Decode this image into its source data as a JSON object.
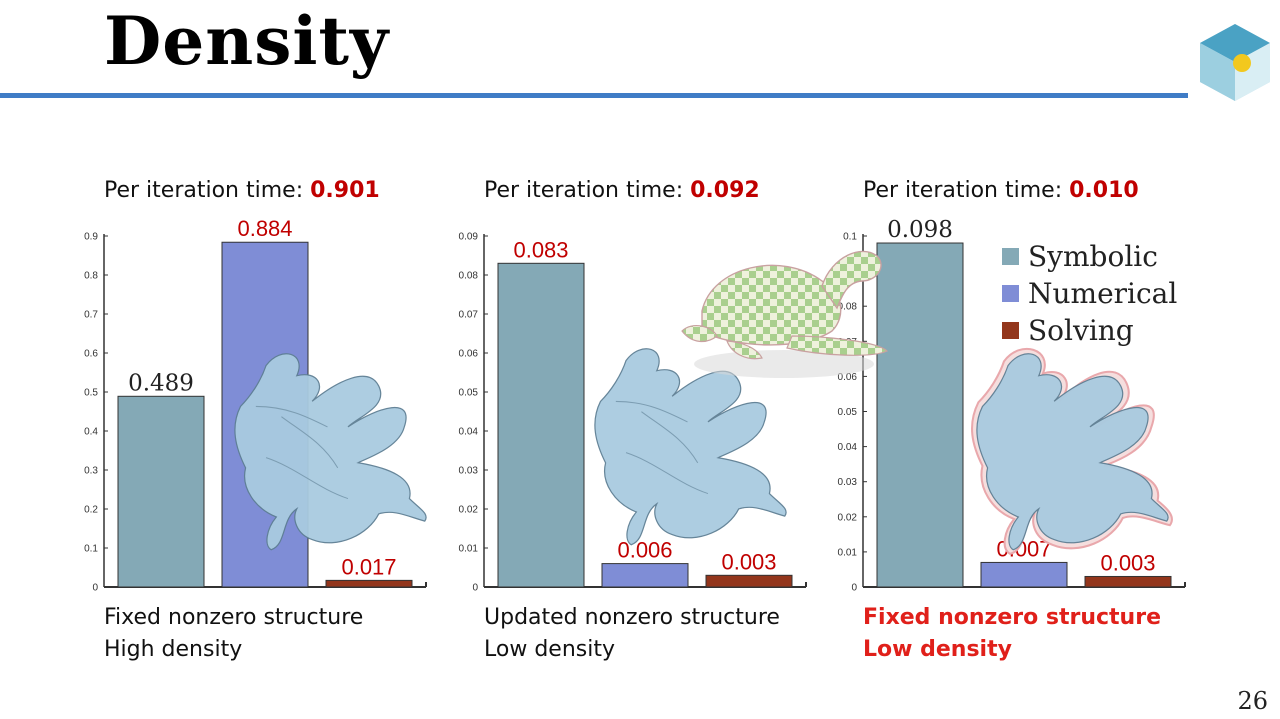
{
  "slide": {
    "title": "Density",
    "page_number": "26"
  },
  "panels": [
    {
      "heading_prefix": "Per iteration time: ",
      "heading_value": "0.901",
      "caption_line1": "Fixed nonzero structure",
      "caption_line2": "High density",
      "caption_highlight": false
    },
    {
      "heading_prefix": "Per iteration time: ",
      "heading_value": "0.092",
      "caption_line1": "Updated nonzero structure",
      "caption_line2": "Low density",
      "caption_highlight": false
    },
    {
      "heading_prefix": "Per iteration time: ",
      "heading_value": "0.010",
      "caption_line1": "Fixed nonzero structure",
      "caption_line2": "Low density",
      "caption_highlight": true
    }
  ],
  "legend": [
    {
      "label": "Symbolic",
      "color": "#84a9b6"
    },
    {
      "label": "Numerical",
      "color": "#7f8dd6"
    },
    {
      "label": "Solving",
      "color": "#93361c"
    }
  ],
  "chart_data": [
    {
      "type": "bar",
      "categories": [
        "Symbolic",
        "Numerical",
        "Solving"
      ],
      "values": [
        0.489,
        0.884,
        0.017
      ],
      "value_labels": [
        "0.489",
        "0.884",
        "0.017"
      ],
      "ylim": [
        0,
        0.9
      ],
      "yticks": [
        "0",
        "0.1",
        "0.2",
        "0.3",
        "0.4",
        "0.5",
        "0.6",
        "0.7",
        "0.8",
        "0.9"
      ]
    },
    {
      "type": "bar",
      "categories": [
        "Symbolic",
        "Numerical",
        "Solving"
      ],
      "values": [
        0.083,
        0.006,
        0.003
      ],
      "value_labels": [
        "0.083",
        "0.006",
        "0.003"
      ],
      "ylim": [
        0,
        0.09
      ],
      "yticks": [
        "0",
        "0.01",
        "0.02",
        "0.03",
        "0.04",
        "0.05",
        "0.06",
        "0.07",
        "0.08",
        "0.09"
      ]
    },
    {
      "type": "bar",
      "categories": [
        "Symbolic",
        "Numerical",
        "Solving"
      ],
      "values": [
        0.098,
        0.007,
        0.003
      ],
      "value_labels": [
        "0.098",
        "0.007",
        "0.003"
      ],
      "ylim": [
        0,
        0.1
      ],
      "yticks": [
        "0",
        "0.01",
        "0.02",
        "0.03",
        "0.04",
        "0.05",
        "0.06",
        "0.07",
        "0.08",
        "0.09",
        "0.1"
      ]
    }
  ],
  "colors": {
    "accent_rule": "#3f7cc6",
    "highlight_red": "#c00000",
    "mesh_blue": "#9fc6dc",
    "mesh_outline": "#e9a8ac",
    "checker_green": "#b9d6a0"
  },
  "icons": {
    "logo": "hexagon-cube-logo-icon",
    "mesh": "dragon-mesh-illustration",
    "turtle": "checkered-turtle-illustration"
  }
}
